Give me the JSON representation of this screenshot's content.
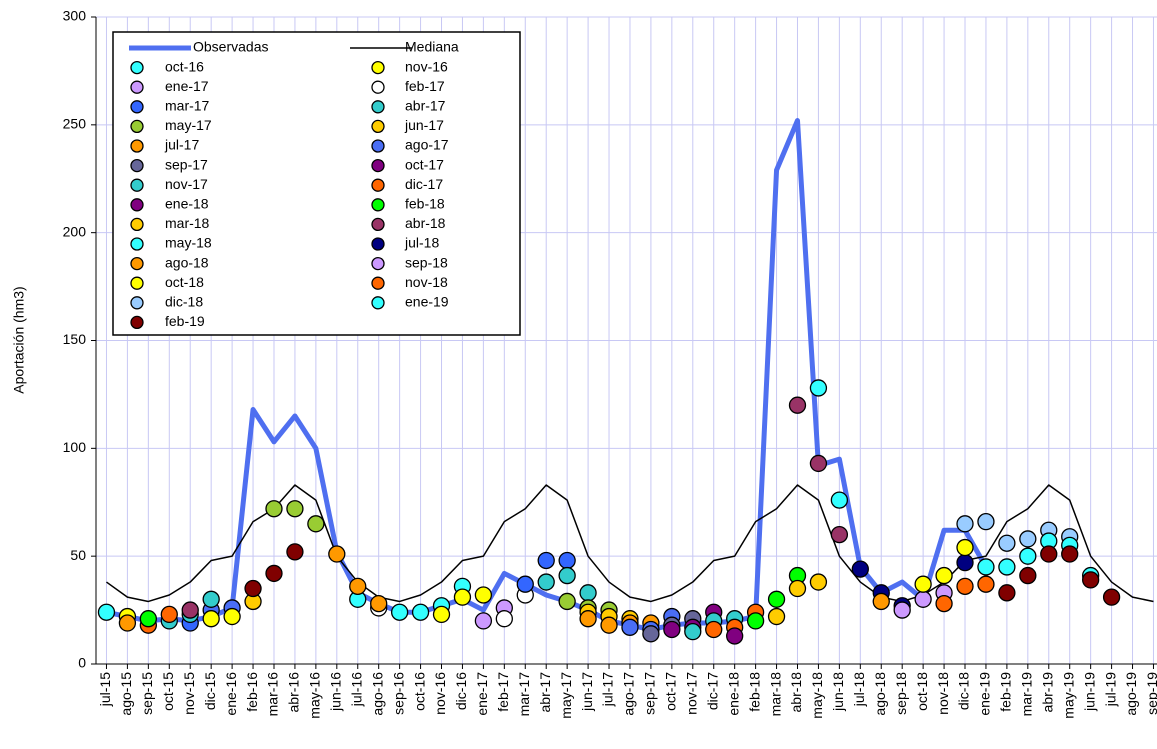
{
  "chart_data": {
    "type": "line",
    "y_label": "Aportación (hm3)",
    "categories": [
      "jul-15",
      "ago-15",
      "sep-15",
      "oct-15",
      "nov-15",
      "dic-15",
      "ene-16",
      "feb-16",
      "mar-16",
      "abr-16",
      "may-16",
      "jun-16",
      "jul-16",
      "ago-16",
      "sep-16",
      "oct-16",
      "nov-16",
      "dic-16",
      "ene-17",
      "feb-17",
      "mar-17",
      "abr-17",
      "may-17",
      "jun-17",
      "jul-17",
      "ago-17",
      "sep-17",
      "oct-17",
      "nov-17",
      "dic-17",
      "ene-18",
      "feb-18",
      "mar-18",
      "abr-18",
      "may-18",
      "jun-18",
      "jul-18",
      "ago-18",
      "sep-18",
      "oct-18",
      "nov-18",
      "dic-18",
      "ene-19",
      "feb-19",
      "mar-19",
      "abr-19",
      "may-19",
      "jun-19",
      "jul-19",
      "ago-19",
      "sep-19"
    ],
    "ylim": [
      0,
      300
    ],
    "yticks": [
      0,
      50,
      100,
      150,
      200,
      250,
      300
    ],
    "grid": true,
    "legend": "top-left",
    "series": [
      {
        "name": "Observadas",
        "type": "line",
        "color": "#4f6ff0",
        "values": [
          24,
          22,
          20,
          21,
          20,
          22,
          26,
          118,
          103,
          115,
          100,
          52,
          33,
          28,
          24,
          24,
          27,
          30,
          25,
          42,
          37,
          32,
          29,
          25,
          20,
          18,
          16,
          18,
          19,
          19,
          20,
          22,
          229,
          252,
          92,
          95,
          45,
          33,
          38,
          30,
          62,
          62,
          45,
          null,
          null,
          null,
          null,
          null,
          null,
          null,
          null
        ]
      },
      {
        "name": "Mediana",
        "type": "line",
        "color": "#000000",
        "values": [
          38,
          31,
          29,
          32,
          38,
          48,
          50,
          66,
          72,
          83,
          76,
          50,
          38,
          31,
          29,
          32,
          38,
          48,
          50,
          66,
          72,
          83,
          76,
          50,
          38,
          31,
          29,
          32,
          38,
          48,
          50,
          66,
          72,
          83,
          76,
          50,
          38,
          31,
          29,
          32,
          38,
          48,
          50,
          66,
          72,
          83,
          76,
          50,
          38,
          31,
          29
        ]
      },
      {
        "name": "oct-16",
        "type": "scatter",
        "color": "#33ffff",
        "x": [
          "jul-15",
          "jul-16",
          "sep-16",
          "oct-16",
          "nov-16",
          "dic-16"
        ],
        "values": [
          24,
          30,
          24,
          24,
          27,
          36
        ]
      },
      {
        "name": "nov-16",
        "type": "scatter",
        "color": "#ffff00",
        "x": [
          "ago-15",
          "nov-16",
          "dic-16",
          "ene-17"
        ],
        "values": [
          22,
          23,
          31,
          32
        ]
      },
      {
        "name": "ene-17",
        "type": "scatter",
        "color": "#cc99ff",
        "x": [
          "ene-17",
          "feb-17"
        ],
        "values": [
          20,
          26
        ]
      },
      {
        "name": "feb-17",
        "type": "scatter",
        "color": "#ffffff",
        "x": [
          "ago-16",
          "feb-17",
          "mar-17"
        ],
        "values": [
          26,
          21,
          32
        ]
      },
      {
        "name": "mar-17",
        "type": "scatter",
        "color": "#3366ff",
        "x": [
          "nov-15",
          "mar-17",
          "abr-17",
          "may-17"
        ],
        "values": [
          19,
          37,
          48,
          48
        ]
      },
      {
        "name": "abr-17",
        "type": "scatter",
        "color": "#33cccc",
        "x": [
          "nov-15",
          "abr-17",
          "may-17",
          "jun-17"
        ],
        "values": [
          23,
          38,
          41,
          33
        ]
      },
      {
        "name": "may-17",
        "type": "scatter",
        "color": "#99cc33",
        "x": [
          "mar-16",
          "abr-16",
          "may-16",
          "may-17",
          "jun-17",
          "jul-17"
        ],
        "values": [
          72,
          72,
          65,
          29,
          26,
          25
        ]
      },
      {
        "name": "jun-17",
        "type": "scatter",
        "color": "#ffcc00",
        "x": [
          "jun-17",
          "jul-17",
          "ago-17"
        ],
        "values": [
          24,
          22,
          21
        ]
      },
      {
        "name": "jul-17",
        "type": "scatter",
        "color": "#ff9900",
        "x": [
          "ago-15",
          "jun-17",
          "jul-17",
          "ago-17",
          "sep-17"
        ],
        "values": [
          19,
          21,
          18,
          19,
          19
        ]
      },
      {
        "name": "ago-17",
        "type": "scatter",
        "color": "#4a6ef5",
        "x": [
          "dic-15",
          "ene-16",
          "ago-17",
          "sep-17",
          "oct-17"
        ],
        "values": [
          25,
          26,
          17,
          16,
          22
        ]
      },
      {
        "name": "sep-17",
        "type": "scatter",
        "color": "#666699",
        "x": [
          "sep-17",
          "oct-17",
          "nov-17"
        ],
        "values": [
          14,
          18,
          21
        ]
      },
      {
        "name": "oct-17",
        "type": "scatter",
        "color": "#800080",
        "x": [
          "oct-17",
          "nov-17",
          "dic-17"
        ],
        "values": [
          16,
          17,
          24
        ]
      },
      {
        "name": "nov-17",
        "type": "scatter",
        "color": "#33cccc",
        "x": [
          "oct-15",
          "dic-15",
          "nov-17",
          "dic-17",
          "ene-18"
        ],
        "values": [
          20,
          30,
          15,
          20,
          21
        ]
      },
      {
        "name": "dic-17",
        "type": "scatter",
        "color": "#ff6600",
        "x": [
          "sep-15",
          "dic-17",
          "ene-18",
          "feb-18"
        ],
        "values": [
          18,
          16,
          17,
          24
        ]
      },
      {
        "name": "ene-18",
        "type": "scatter",
        "color": "#800080",
        "x": [
          "ene-18"
        ],
        "values": [
          13
        ]
      },
      {
        "name": "feb-18",
        "type": "scatter",
        "color": "#00ff00",
        "x": [
          "sep-15",
          "feb-18",
          "mar-18",
          "abr-18"
        ],
        "values": [
          21,
          20,
          30,
          41
        ]
      },
      {
        "name": "mar-18",
        "type": "scatter",
        "color": "#ffcc00",
        "x": [
          "feb-16",
          "mar-18",
          "abr-18",
          "may-18"
        ],
        "values": [
          29,
          22,
          35,
          38
        ]
      },
      {
        "name": "abr-18",
        "type": "scatter",
        "color": "#993366",
        "x": [
          "nov-15",
          "abr-18",
          "may-18",
          "jun-18"
        ],
        "values": [
          25,
          120,
          93,
          60
        ]
      },
      {
        "name": "may-18",
        "type": "scatter",
        "color": "#33ffff",
        "x": [
          "may-18",
          "jun-18"
        ],
        "values": [
          128,
          76
        ]
      },
      {
        "name": "jul-18",
        "type": "scatter",
        "color": "#000080",
        "x": [
          "jul-18",
          "ago-18",
          "sep-18",
          "dic-18"
        ],
        "values": [
          44,
          33,
          27,
          47
        ]
      },
      {
        "name": "ago-18",
        "type": "scatter",
        "color": "#ff9900",
        "x": [
          "jun-16",
          "jul-16",
          "ago-16",
          "ago-18"
        ],
        "values": [
          51,
          36,
          28,
          29
        ]
      },
      {
        "name": "sep-18",
        "type": "scatter",
        "color": "#cc99ff",
        "x": [
          "sep-18",
          "oct-18",
          "nov-18"
        ],
        "values": [
          25,
          30,
          33
        ]
      },
      {
        "name": "oct-18",
        "type": "scatter",
        "color": "#ffff00",
        "x": [
          "dic-15",
          "ene-16",
          "oct-18",
          "nov-18",
          "dic-18"
        ],
        "values": [
          21,
          22,
          37,
          41,
          54
        ]
      },
      {
        "name": "nov-18",
        "type": "scatter",
        "color": "#ff6600",
        "x": [
          "oct-15",
          "nov-18",
          "dic-18",
          "ene-19"
        ],
        "values": [
          23,
          28,
          36,
          37
        ]
      },
      {
        "name": "dic-18",
        "type": "scatter",
        "color": "#99ccff",
        "x": [
          "dic-18",
          "ene-19",
          "feb-19",
          "mar-19",
          "abr-19",
          "may-19"
        ],
        "values": [
          65,
          66,
          56,
          58,
          62,
          59
        ]
      },
      {
        "name": "ene-19",
        "type": "scatter",
        "color": "#33ffff",
        "x": [
          "ene-19",
          "feb-19",
          "mar-19",
          "abr-19",
          "may-19",
          "jun-19"
        ],
        "values": [
          45,
          45,
          50,
          57,
          55,
          41
        ]
      },
      {
        "name": "feb-19",
        "type": "scatter",
        "color": "#800000",
        "x": [
          "feb-16",
          "mar-16",
          "abr-16",
          "feb-19",
          "mar-19",
          "abr-19",
          "may-19",
          "jun-19",
          "jul-19"
        ],
        "values": [
          35,
          42,
          52,
          33,
          41,
          51,
          51,
          39,
          31
        ]
      }
    ]
  }
}
